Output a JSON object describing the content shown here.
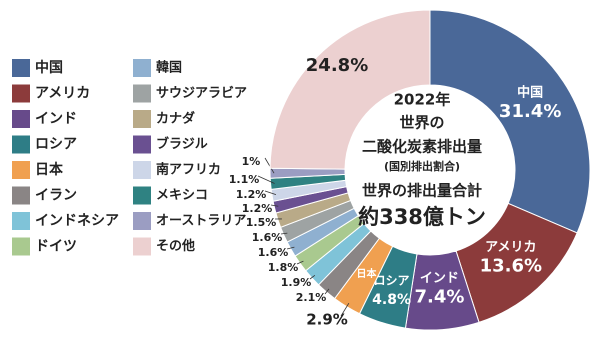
{
  "chart_data": {
    "type": "donut",
    "categories": [
      "中国",
      "アメリカ",
      "インド",
      "ロシア",
      "日本",
      "イラン",
      "インドネシア",
      "ドイツ",
      "韓国",
      "サウジアラビア",
      "カナダ",
      "ブラジル",
      "南アフリカ",
      "メキシコ",
      "オーストラリア",
      "その他"
    ],
    "values": [
      31.4,
      13.6,
      7.4,
      4.8,
      2.9,
      2.1,
      1.9,
      1.8,
      1.6,
      1.6,
      1.5,
      1.2,
      1.2,
      1.1,
      1,
      24.8
    ],
    "value_labels": [
      "31.4%",
      "13.6%",
      "7.4%",
      "4.8%",
      "2.9%",
      "2.1%",
      "1.9%",
      "1.8%",
      "1.6%",
      "1.6%",
      "1.5%",
      "1.2%",
      "1.2%",
      "1.1%",
      "1%",
      "24.8%"
    ],
    "colors": [
      "#4a6898",
      "#8c3b3b",
      "#674a8a",
      "#2e7d86",
      "#f0a050",
      "#8a8585",
      "#7fc3d8",
      "#a9c98f",
      "#8fb0d0",
      "#9ea3a3",
      "#b9aa88",
      "#6a5091",
      "#cdd6e8",
      "#2f8282",
      "#9b9dc2",
      "#ecd0d0"
    ],
    "center_text": [
      "2022年",
      "世界の",
      "二酸化炭素排出量",
      "(国別排出割合)",
      "世界の排出量合計",
      "約338億トン"
    ],
    "legend": "left"
  }
}
